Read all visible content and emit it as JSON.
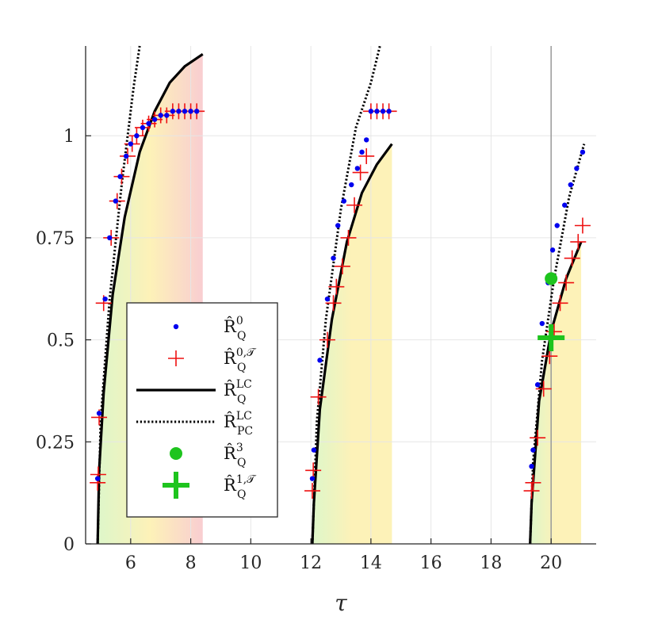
{
  "chart_data": {
    "type": "scatter",
    "title": "",
    "xlabel": "τ",
    "ylabel": "",
    "xlim": [
      4.5,
      21.5
    ],
    "ylim": [
      0,
      1.22
    ],
    "grid": true,
    "x_ticks": [
      6,
      8,
      10,
      12,
      14,
      16,
      18,
      20
    ],
    "x_tick_labels": [
      "6",
      "8",
      "10",
      "12",
      "14",
      "16",
      "18",
      "20"
    ],
    "y_ticks": [
      0,
      0.25,
      0.5,
      0.75,
      1
    ],
    "y_tick_labels": [
      "0",
      "0.25",
      "0.5",
      "0.75",
      "1"
    ],
    "vline_x": 20,
    "colors": {
      "dots": "#0000ee",
      "plus": "#ee1111",
      "green": "#1ec41e",
      "black": "#000000",
      "region_start": "#d8f5c0",
      "region_mid": "#fdf0b0",
      "region_end": "#f8c8cc"
    },
    "legend": {
      "location": "center-left",
      "entries": [
        {
          "base": "R̂",
          "sub": "Q",
          "sup": "0"
        },
        {
          "base": "R̂",
          "sub": "Q",
          "sup": "0,𝒯"
        },
        {
          "base": "R̂",
          "sub": "Q",
          "sup": "LC"
        },
        {
          "base": "R̂",
          "sub": "PC",
          "sup": "LC"
        },
        {
          "base": "R̂",
          "sub": "Q",
          "sup": "3"
        },
        {
          "base": "R̂",
          "sub": "Q",
          "sup": "1,𝒯"
        }
      ]
    },
    "regions": [
      {
        "x_start": 4.9,
        "x_end": 8.4,
        "end_hue": "red"
      },
      {
        "x_start": 12.1,
        "x_end": 14.7,
        "end_hue": "yellow"
      },
      {
        "x_start": 19.3,
        "x_end": 21.0,
        "end_hue": "yellow"
      }
    ],
    "series": [
      {
        "name": "R̂_Q^0",
        "style": "dots",
        "points": [
          [
            4.9,
            0.16
          ],
          [
            4.95,
            0.32
          ],
          [
            5.15,
            0.6
          ],
          [
            5.3,
            0.75
          ],
          [
            5.5,
            0.84
          ],
          [
            5.65,
            0.9
          ],
          [
            5.85,
            0.95
          ],
          [
            6.0,
            0.98
          ],
          [
            6.2,
            1.0
          ],
          [
            6.4,
            1.02
          ],
          [
            6.6,
            1.03
          ],
          [
            6.8,
            1.04
          ],
          [
            7.0,
            1.05
          ],
          [
            7.2,
            1.05
          ],
          [
            7.4,
            1.06
          ],
          [
            7.6,
            1.06
          ],
          [
            7.8,
            1.06
          ],
          [
            8.0,
            1.06
          ],
          [
            8.2,
            1.06
          ],
          [
            12.05,
            0.16
          ],
          [
            12.1,
            0.23
          ],
          [
            12.3,
            0.45
          ],
          [
            12.55,
            0.6
          ],
          [
            12.75,
            0.7
          ],
          [
            12.9,
            0.78
          ],
          [
            13.1,
            0.84
          ],
          [
            13.35,
            0.88
          ],
          [
            13.55,
            0.92
          ],
          [
            13.7,
            0.96
          ],
          [
            13.85,
            0.99
          ],
          [
            14.0,
            1.06
          ],
          [
            14.2,
            1.06
          ],
          [
            14.4,
            1.06
          ],
          [
            14.6,
            1.06
          ],
          [
            19.35,
            0.19
          ],
          [
            19.4,
            0.23
          ],
          [
            19.55,
            0.39
          ],
          [
            19.7,
            0.54
          ],
          [
            19.9,
            0.64
          ],
          [
            20.05,
            0.72
          ],
          [
            20.2,
            0.78
          ],
          [
            20.45,
            0.83
          ],
          [
            20.65,
            0.88
          ],
          [
            20.85,
            0.92
          ],
          [
            21.05,
            0.96
          ]
        ]
      },
      {
        "name": "R̂_Q^{0,𝒯}",
        "style": "plus",
        "points": [
          [
            4.9,
            0.15
          ],
          [
            4.92,
            0.17
          ],
          [
            4.95,
            0.31
          ],
          [
            5.1,
            0.59
          ],
          [
            5.35,
            0.75
          ],
          [
            5.55,
            0.84
          ],
          [
            5.7,
            0.9
          ],
          [
            5.9,
            0.95
          ],
          [
            6.05,
            0.98
          ],
          [
            6.2,
            1.0
          ],
          [
            6.4,
            1.02
          ],
          [
            6.6,
            1.03
          ],
          [
            6.8,
            1.04
          ],
          [
            7.0,
            1.05
          ],
          [
            7.2,
            1.05
          ],
          [
            7.4,
            1.06
          ],
          [
            7.6,
            1.06
          ],
          [
            7.8,
            1.06
          ],
          [
            8.0,
            1.06
          ],
          [
            8.2,
            1.06
          ],
          [
            12.05,
            0.13
          ],
          [
            12.08,
            0.18
          ],
          [
            12.25,
            0.36
          ],
          [
            12.55,
            0.5
          ],
          [
            12.75,
            0.59
          ],
          [
            12.85,
            0.63
          ],
          [
            13.05,
            0.68
          ],
          [
            13.25,
            0.75
          ],
          [
            13.45,
            0.83
          ],
          [
            13.65,
            0.91
          ],
          [
            13.85,
            0.95
          ],
          [
            14.0,
            1.06
          ],
          [
            14.2,
            1.06
          ],
          [
            14.4,
            1.06
          ],
          [
            14.6,
            1.06
          ],
          [
            19.35,
            0.13
          ],
          [
            19.4,
            0.15
          ],
          [
            19.55,
            0.26
          ],
          [
            19.75,
            0.38
          ],
          [
            19.95,
            0.46
          ],
          [
            20.1,
            0.52
          ],
          [
            20.3,
            0.59
          ],
          [
            20.5,
            0.64
          ],
          [
            20.7,
            0.7
          ],
          [
            20.9,
            0.74
          ],
          [
            21.05,
            0.78
          ]
        ]
      },
      {
        "name": "R̂_Q^{LC}",
        "style": "solid",
        "segments": [
          [
            [
              4.9,
              0.0
            ],
            [
              4.95,
              0.18
            ],
            [
              5.1,
              0.37
            ],
            [
              5.4,
              0.61
            ],
            [
              5.8,
              0.8
            ],
            [
              6.3,
              0.96
            ],
            [
              6.8,
              1.06
            ],
            [
              7.3,
              1.13
            ],
            [
              7.8,
              1.17
            ],
            [
              8.4,
              1.2
            ]
          ],
          [
            [
              12.05,
              0.0
            ],
            [
              12.1,
              0.1
            ],
            [
              12.3,
              0.33
            ],
            [
              12.7,
              0.55
            ],
            [
              13.2,
              0.74
            ],
            [
              13.7,
              0.86
            ],
            [
              14.2,
              0.93
            ],
            [
              14.7,
              0.98
            ]
          ],
          [
            [
              19.3,
              0.0
            ],
            [
              19.35,
              0.1
            ],
            [
              19.6,
              0.35
            ],
            [
              20.0,
              0.52
            ],
            [
              20.5,
              0.65
            ],
            [
              21.0,
              0.74
            ]
          ]
        ]
      },
      {
        "name": "R̂_PC^{LC}",
        "style": "dotted",
        "segments": [
          [
            [
              4.9,
              0.0
            ],
            [
              5.0,
              0.3
            ],
            [
              5.3,
              0.6
            ],
            [
              5.7,
              0.88
            ],
            [
              6.1,
              1.12
            ],
            [
              6.3,
              1.22
            ]
          ],
          [
            [
              12.05,
              0.0
            ],
            [
              12.2,
              0.3
            ],
            [
              12.5,
              0.55
            ],
            [
              13.0,
              0.82
            ],
            [
              13.5,
              1.02
            ],
            [
              14.0,
              1.13
            ],
            [
              14.3,
              1.22
            ]
          ],
          [
            [
              19.3,
              0.0
            ],
            [
              19.4,
              0.2
            ],
            [
              19.7,
              0.45
            ],
            [
              20.1,
              0.65
            ],
            [
              20.6,
              0.85
            ],
            [
              21.1,
              0.98
            ]
          ]
        ]
      },
      {
        "name": "R̂_Q^3",
        "style": "big-dot",
        "points": [
          [
            20.0,
            0.65
          ]
        ]
      },
      {
        "name": "R̂_Q^{1,𝒯}",
        "style": "big-plus",
        "points": [
          [
            20.0,
            0.505
          ]
        ]
      }
    ]
  }
}
